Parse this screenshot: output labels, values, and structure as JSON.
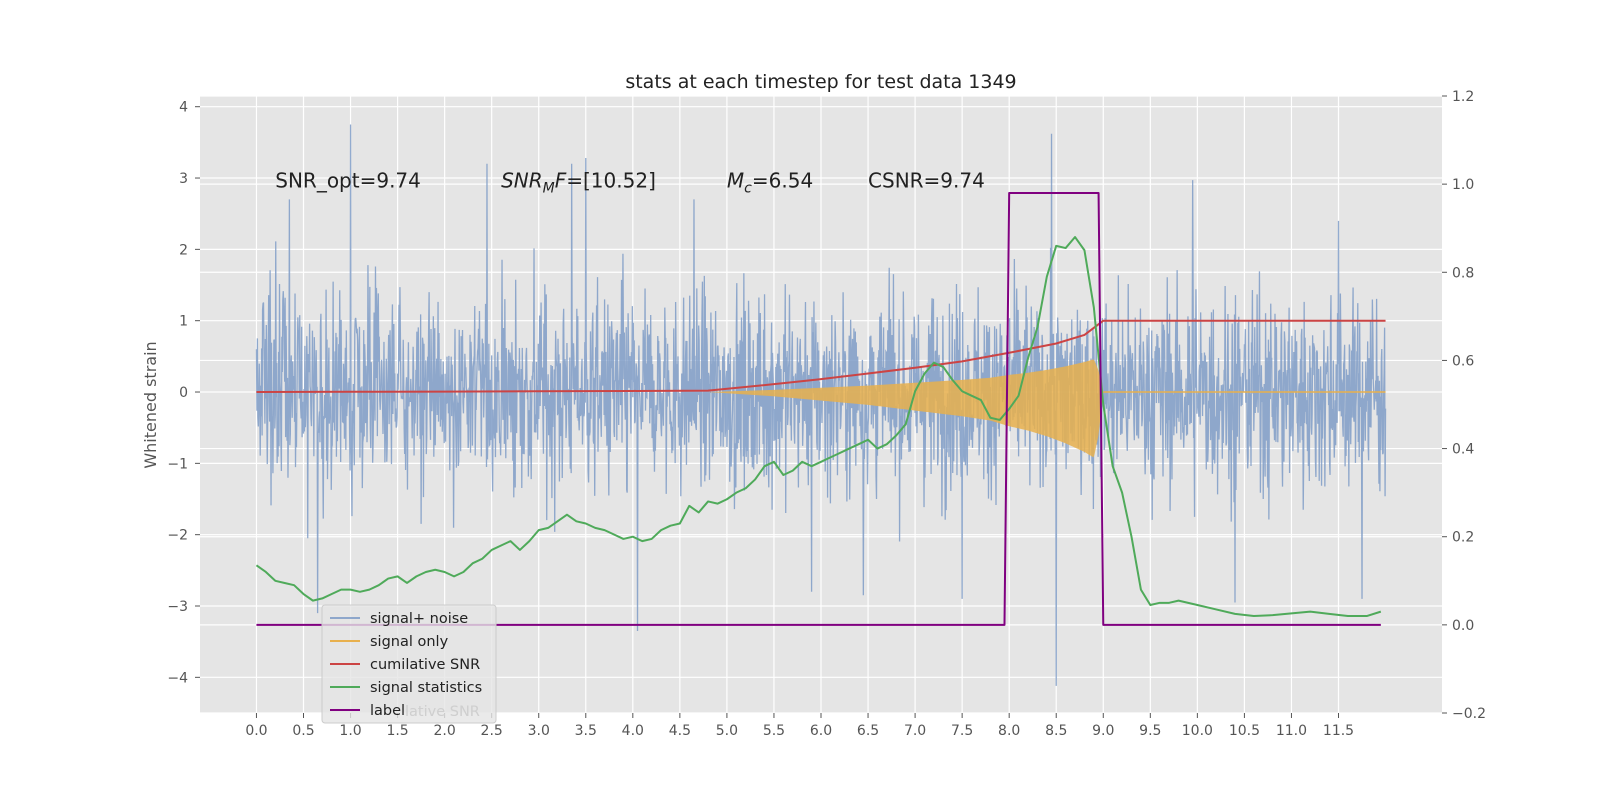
{
  "chart_data": {
    "type": "line",
    "title": "stats at each timestep for test data 1349",
    "ylabel": "Whitened strain",
    "y2label": "",
    "xlim": [
      -0.6,
      12.6
    ],
    "ylim": [
      -4.5,
      4.15
    ],
    "y2lim": [
      -0.2,
      1.2
    ],
    "x_ticks": [
      "0.0",
      "0.5",
      "1.0",
      "1.5",
      "2.0",
      "2.5",
      "3.0",
      "3.5",
      "4.0",
      "4.5",
      "5.0",
      "5.5",
      "6.0",
      "6.5",
      "7.0",
      "7.5",
      "8.0",
      "8.5",
      "9.0",
      "9.5",
      "10.0",
      "10.5",
      "11.0",
      "11.5"
    ],
    "y_ticks": [
      4,
      3,
      2,
      1,
      0,
      -1,
      -2,
      -3,
      -4
    ],
    "y2_ticks": [
      1.2,
      1.0,
      0.8,
      0.6,
      0.4,
      0.2,
      0.0,
      -0.2
    ],
    "grid": true,
    "legend_position": "lower-left",
    "annotations": [
      {
        "name": "snr-opt",
        "text": "SNR_opt=9.74",
        "x": 0.2,
        "y": 2.87
      },
      {
        "name": "snr-mf",
        "base": "SNR",
        "sub": "M",
        "tail": "F=[10.52]",
        "x": 2.6,
        "y": 2.87
      },
      {
        "name": "mc",
        "base": "M",
        "sub": "c",
        "tail": "=6.54",
        "x": 5.0,
        "y": 2.87
      },
      {
        "name": "csnr",
        "text": "CSNR=9.74",
        "x": 6.5,
        "y": 2.87
      }
    ],
    "series": [
      {
        "name": "signal+ noise",
        "axis": "left",
        "color": "#7f9cc7",
        "description": "noisy whitened strain, roughly uniform over 0.0-12.0",
        "x_range": [
          0.0,
          12.0
        ],
        "spikes_up": [
          [
            1.0,
            3.75
          ],
          [
            8.45,
            3.62
          ],
          [
            3.5,
            3.28
          ],
          [
            3.35,
            3.2
          ],
          [
            2.45,
            3.2
          ],
          [
            9.95,
            2.97
          ],
          [
            0.35,
            2.7
          ],
          [
            4.65,
            2.7
          ],
          [
            11.5,
            2.4
          ]
        ],
        "spikes_down": [
          [
            4.05,
            -3.35
          ],
          [
            8.5,
            -4.12
          ],
          [
            0.65,
            -3.1
          ],
          [
            5.9,
            -2.8
          ],
          [
            6.45,
            -2.85
          ],
          [
            7.5,
            -2.9
          ],
          [
            10.4,
            -2.95
          ],
          [
            11.75,
            -2.9
          ]
        ]
      },
      {
        "name": "signal only",
        "axis": "left",
        "color": "#e8b04d",
        "description": "chirp signal envelope",
        "envelope": [
          [
            4.8,
            0.0
          ],
          [
            5.5,
            0.03
          ],
          [
            6.0,
            0.06
          ],
          [
            6.5,
            0.09
          ],
          [
            7.0,
            0.13
          ],
          [
            7.5,
            0.17
          ],
          [
            7.8,
            0.2
          ],
          [
            8.0,
            0.24
          ],
          [
            8.2,
            0.27
          ],
          [
            8.4,
            0.31
          ],
          [
            8.6,
            0.36
          ],
          [
            8.8,
            0.42
          ],
          [
            8.9,
            0.46
          ],
          [
            8.95,
            0.3
          ],
          [
            9.0,
            0.0
          ],
          [
            12.0,
            0.0
          ]
        ]
      },
      {
        "name": "cumilative SNR",
        "axis": "left",
        "color": "#cc4444",
        "x": [
          0.0,
          1.0,
          2.0,
          3.0,
          4.0,
          4.8,
          5.5,
          6.0,
          6.5,
          7.0,
          7.5,
          8.0,
          8.5,
          8.8,
          9.0,
          12.0
        ],
        "y": [
          0.0,
          0.003,
          0.006,
          0.01,
          0.015,
          0.02,
          0.11,
          0.18,
          0.26,
          0.34,
          0.43,
          0.55,
          0.68,
          0.8,
          1.0,
          1.0
        ]
      },
      {
        "name": "signal statistics",
        "axis": "right",
        "color": "#4faa5a",
        "x": [
          0.0,
          0.1,
          0.2,
          0.3,
          0.4,
          0.5,
          0.6,
          0.7,
          0.8,
          0.9,
          1.0,
          1.1,
          1.2,
          1.3,
          1.4,
          1.5,
          1.6,
          1.7,
          1.8,
          1.9,
          2.0,
          2.1,
          2.2,
          2.3,
          2.4,
          2.5,
          2.6,
          2.7,
          2.8,
          2.9,
          3.0,
          3.1,
          3.2,
          3.3,
          3.4,
          3.5,
          3.6,
          3.7,
          3.8,
          3.9,
          4.0,
          4.1,
          4.2,
          4.3,
          4.4,
          4.5,
          4.6,
          4.7,
          4.8,
          4.9,
          5.0,
          5.1,
          5.2,
          5.3,
          5.4,
          5.5,
          5.6,
          5.7,
          5.8,
          5.9,
          6.0,
          6.1,
          6.2,
          6.3,
          6.4,
          6.5,
          6.6,
          6.7,
          6.8,
          6.9,
          7.0,
          7.1,
          7.2,
          7.3,
          7.4,
          7.5,
          7.6,
          7.7,
          7.8,
          7.9,
          8.0,
          8.1,
          8.2,
          8.3,
          8.4,
          8.5,
          8.6,
          8.7,
          8.8,
          8.9,
          9.0,
          9.1,
          9.2,
          9.3,
          9.4,
          9.5,
          9.6,
          9.7,
          9.8,
          10.0,
          10.2,
          10.4,
          10.6,
          10.8,
          11.0,
          11.2,
          11.4,
          11.6,
          11.8,
          11.95
        ],
        "y": [
          0.135,
          0.12,
          0.1,
          0.095,
          0.09,
          0.07,
          0.055,
          0.06,
          0.07,
          0.08,
          0.08,
          0.075,
          0.08,
          0.09,
          0.105,
          0.11,
          0.095,
          0.11,
          0.12,
          0.125,
          0.12,
          0.11,
          0.12,
          0.14,
          0.15,
          0.17,
          0.18,
          0.19,
          0.17,
          0.19,
          0.215,
          0.22,
          0.235,
          0.25,
          0.235,
          0.23,
          0.22,
          0.215,
          0.205,
          0.195,
          0.2,
          0.19,
          0.195,
          0.215,
          0.225,
          0.23,
          0.27,
          0.255,
          0.28,
          0.275,
          0.285,
          0.3,
          0.31,
          0.33,
          0.36,
          0.37,
          0.34,
          0.35,
          0.37,
          0.36,
          0.37,
          0.38,
          0.39,
          0.4,
          0.41,
          0.42,
          0.4,
          0.41,
          0.43,
          0.455,
          0.53,
          0.57,
          0.595,
          0.585,
          0.555,
          0.53,
          0.52,
          0.51,
          0.47,
          0.465,
          0.49,
          0.52,
          0.605,
          0.675,
          0.79,
          0.86,
          0.855,
          0.88,
          0.85,
          0.72,
          0.5,
          0.36,
          0.3,
          0.2,
          0.08,
          0.045,
          0.05,
          0.05,
          0.055,
          0.045,
          0.035,
          0.025,
          0.02,
          0.022,
          0.026,
          0.03,
          0.025,
          0.02,
          0.02,
          0.03
        ]
      },
      {
        "name": "label",
        "axis": "right",
        "color": "#800080",
        "x": [
          0.0,
          7.95,
          8.0,
          8.95,
          9.0,
          11.95
        ],
        "y": [
          0.0,
          0.0,
          0.98,
          0.98,
          0.0,
          0.0
        ]
      }
    ],
    "legend": {
      "entries": [
        "signal+ noise",
        "signal only",
        "cumilative SNR",
        "signal statistics",
        "label"
      ],
      "overlap_text": "lative SNR"
    }
  }
}
